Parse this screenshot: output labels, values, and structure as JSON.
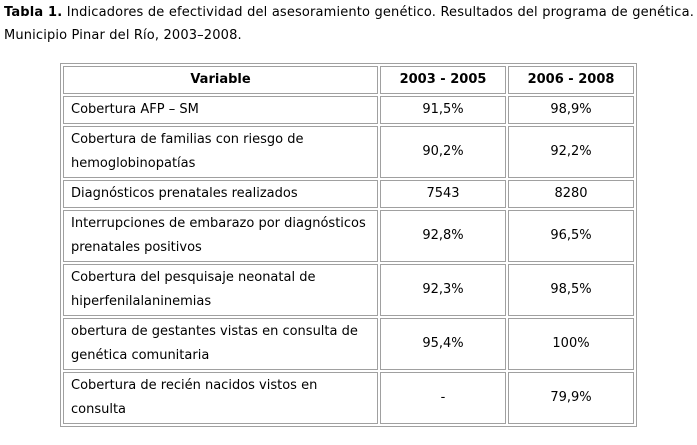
{
  "caption": {
    "label": "Tabla 1.",
    "text": " Indicadores de efectividad del asesoramiento genético. Resultados del programa de genética. Municipio Pinar del Río,  2003–2008."
  },
  "table": {
    "headers": [
      "Variable",
      "2003 - 2005",
      "2006 - 2008"
    ],
    "rows": [
      {
        "variable": "Cobertura AFP – SM",
        "v2003_2005": "91,5%",
        "v2006_2008": "98,9%"
      },
      {
        "variable": "Cobertura de familias con riesgo de hemoglobinopatías",
        "v2003_2005": "90,2%",
        "v2006_2008": "92,2%"
      },
      {
        "variable": "Diagnósticos prenatales realizados",
        "v2003_2005": "7543",
        "v2006_2008": "8280"
      },
      {
        "variable": "Interrupciones de embarazo por diagnósticos prenatales positivos",
        "v2003_2005": "92,8%",
        "v2006_2008": "96,5%"
      },
      {
        "variable": "Cobertura del pesquisaje neonatal de hiperfenilalaninemias",
        "v2003_2005": "92,3%",
        "v2006_2008": "98,5%"
      },
      {
        "variable": "obertura de gestantes vistas en consulta de genética comunitaria",
        "v2003_2005": "95,4%",
        "v2006_2008": "100%"
      },
      {
        "variable": "Cobertura de recién nacidos vistos en consulta",
        "v2003_2005": "-",
        "v2006_2008": "79,9%"
      }
    ]
  }
}
